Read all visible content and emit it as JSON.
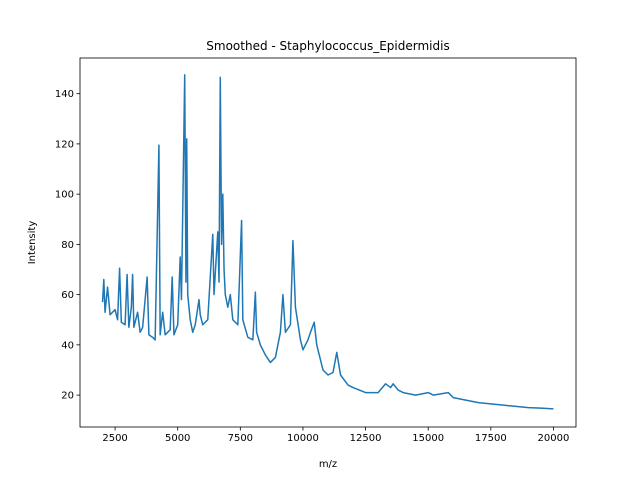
{
  "chart_data": {
    "type": "line",
    "title": "Smoothed - Staphylococcus_Epidermidis",
    "xlabel": "m/z",
    "ylabel": "Intensity",
    "color": "#1f77b4",
    "x": [
      2000,
      2050,
      2100,
      2200,
      2300,
      2500,
      2600,
      2680,
      2750,
      2900,
      2980,
      3050,
      3150,
      3200,
      3250,
      3400,
      3500,
      3600,
      3780,
      3850,
      4000,
      4100,
      4250,
      4300,
      4400,
      4500,
      4700,
      4780,
      4850,
      5000,
      5100,
      5150,
      5280,
      5330,
      5360,
      5400,
      5500,
      5600,
      5700,
      5850,
      5900,
      6000,
      6200,
      6400,
      6450,
      6600,
      6650,
      6700,
      6750,
      6800,
      6850,
      6900,
      7000,
      7100,
      7200,
      7400,
      7550,
      7600,
      7800,
      8000,
      8100,
      8150,
      8300,
      8500,
      8700,
      8900,
      9100,
      9200,
      9300,
      9500,
      9600,
      9700,
      9900,
      10000,
      10200,
      10300,
      10450,
      10550,
      10800,
      11000,
      11200,
      11350,
      11500,
      11800,
      12000,
      12500,
      13000,
      13300,
      13500,
      13600,
      13800,
      14000,
      14500,
      15000,
      15200,
      15500,
      15800,
      16000,
      16500,
      17000,
      17500,
      18000,
      18500,
      19000,
      19500,
      20000
    ],
    "values": [
      57,
      66,
      53,
      63,
      52,
      54,
      50,
      70.5,
      49,
      48,
      68,
      47,
      55,
      68,
      47,
      53,
      45,
      47,
      67,
      44,
      43,
      42,
      119.5,
      44,
      53,
      44,
      46,
      67,
      44,
      48,
      75,
      58,
      147.5,
      65,
      122,
      60,
      50,
      45,
      48,
      58,
      52,
      48,
      50,
      84,
      60,
      85,
      65,
      146.5,
      80,
      100,
      70,
      60,
      55,
      60,
      50,
      48,
      89.5,
      50,
      43,
      42,
      61,
      45,
      40,
      36,
      33,
      35,
      45,
      60,
      45,
      48,
      81.5,
      55,
      42,
      38,
      42,
      45,
      49,
      40,
      30,
      28,
      29,
      37,
      28,
      24,
      23,
      21,
      21,
      24.5,
      23,
      24.5,
      22,
      21,
      20,
      21,
      20,
      20.5,
      21,
      19,
      18,
      17,
      16.5,
      16,
      15.5,
      15,
      14.8,
      14.5
    ],
    "xlim": [
      1100,
      20900
    ],
    "ylim": [
      7.3,
      154.2
    ],
    "xticks": [
      2500,
      5000,
      7500,
      10000,
      12500,
      15000,
      17500,
      20000
    ],
    "yticks": [
      20,
      40,
      60,
      80,
      100,
      120,
      140
    ]
  }
}
